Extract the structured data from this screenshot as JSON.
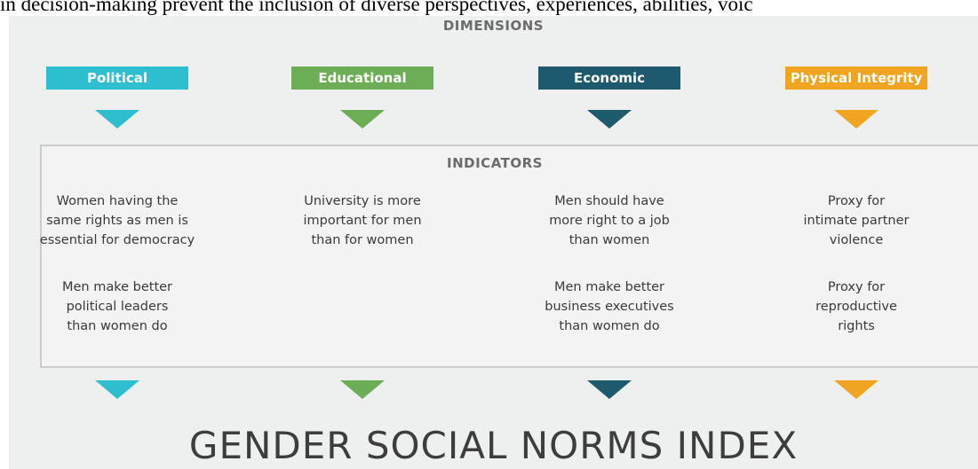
{
  "top_text": "in decision-making prevent the inclusion of diverse perspectives, experiences, abilities, voic",
  "dimensions_label": "DIMENSIONS",
  "indicators_label": "INDICATORS",
  "columns": [
    {
      "name": "Political",
      "indicators": [
        [
          "Women having the",
          "same rights as men is",
          "essential for democracy"
        ],
        [
          "Men make better",
          "political leaders",
          "than women do"
        ]
      ]
    },
    {
      "name": "Educational",
      "indicators": [
        [
          "University is more",
          "important for men",
          "than for women"
        ]
      ]
    },
    {
      "name": "Economic",
      "indicators": [
        [
          "Men should have",
          "more right to a job",
          "than women"
        ],
        [
          "Men make better",
          "business executives",
          "than women do"
        ]
      ]
    },
    {
      "name": "Physical Integrity",
      "indicators": [
        [
          "Proxy for",
          "intimate partner",
          "violence"
        ],
        [
          "Proxy for",
          "reproductive",
          "rights"
        ]
      ]
    }
  ],
  "index_title": "GENDER SOCIAL NORMS INDEX"
}
